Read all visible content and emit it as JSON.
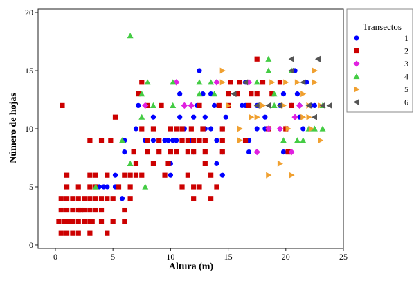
{
  "chart_data": {
    "type": "scatter",
    "xlabel": "Altura (m)",
    "ylabel": "Número de hojas",
    "xlim": [
      -1.5,
      25
    ],
    "ylim": [
      -0.3,
      20.3
    ],
    "xticks": [
      0,
      5,
      10,
      15,
      20,
      25
    ],
    "yticks": [
      0,
      5,
      10,
      15,
      20
    ],
    "legend": {
      "title": "Transectos",
      "placement": "right"
    },
    "series": [
      {
        "name": "1",
        "color": "#0000ff",
        "marker": "circle",
        "points": [
          [
            3.5,
            3
          ],
          [
            3.8,
            5
          ],
          [
            4.2,
            5
          ],
          [
            4.5,
            5
          ],
          [
            5.2,
            6
          ],
          [
            5.2,
            5
          ],
          [
            5.8,
            4
          ],
          [
            6,
            8
          ],
          [
            6,
            9
          ],
          [
            7,
            10
          ],
          [
            7.2,
            12
          ],
          [
            7.8,
            9
          ],
          [
            8.5,
            11
          ],
          [
            8.5,
            9
          ],
          [
            9.5,
            9
          ],
          [
            9.8,
            9
          ],
          [
            10.2,
            9
          ],
          [
            10.5,
            9
          ],
          [
            10,
            7
          ],
          [
            10,
            6
          ],
          [
            10.8,
            13
          ],
          [
            10.8,
            11
          ],
          [
            11,
            9
          ],
          [
            11.2,
            10
          ],
          [
            11.8,
            9
          ],
          [
            12,
            11
          ],
          [
            12,
            8
          ],
          [
            12.3,
            12
          ],
          [
            12.5,
            15
          ],
          [
            12.8,
            13
          ],
          [
            13,
            11
          ],
          [
            13,
            10
          ],
          [
            13,
            9
          ],
          [
            13.5,
            13
          ],
          [
            13.5,
            10
          ],
          [
            13.8,
            12
          ],
          [
            14,
            9
          ],
          [
            14,
            7
          ],
          [
            14.5,
            8
          ],
          [
            14.5,
            6
          ],
          [
            14.5,
            10
          ],
          [
            14.8,
            11
          ],
          [
            16.2,
            12
          ],
          [
            16.5,
            14
          ],
          [
            16.5,
            12
          ],
          [
            16.8,
            9
          ],
          [
            16.8,
            8
          ],
          [
            17.5,
            12
          ],
          [
            17.5,
            10
          ],
          [
            18.2,
            11
          ],
          [
            18.2,
            10
          ],
          [
            19.5,
            12
          ],
          [
            19.5,
            10
          ],
          [
            19.8,
            13
          ],
          [
            19.8,
            8
          ],
          [
            20.5,
            12
          ],
          [
            20.8,
            15
          ],
          [
            21,
            13
          ],
          [
            21.2,
            12
          ],
          [
            21.2,
            11
          ],
          [
            21.5,
            10
          ],
          [
            21.8,
            14
          ],
          [
            22.2,
            12
          ],
          [
            22.5,
            12
          ]
        ]
      },
      {
        "name": "2",
        "color": "#cc0000",
        "marker": "square",
        "points": [
          [
            0.3,
            2
          ],
          [
            0.5,
            1
          ],
          [
            0.5,
            3
          ],
          [
            0.5,
            4
          ],
          [
            0.6,
            12
          ],
          [
            0.8,
            2
          ],
          [
            1,
            1
          ],
          [
            1,
            3
          ],
          [
            1,
            4
          ],
          [
            1,
            5
          ],
          [
            1,
            6
          ],
          [
            1.2,
            2
          ],
          [
            1.5,
            1
          ],
          [
            1.5,
            2
          ],
          [
            1.5,
            3
          ],
          [
            1.5,
            4
          ],
          [
            2,
            1
          ],
          [
            2,
            2
          ],
          [
            2,
            3
          ],
          [
            2,
            4
          ],
          [
            2,
            5
          ],
          [
            2.2,
            3
          ],
          [
            2.5,
            2
          ],
          [
            2.5,
            3
          ],
          [
            2.5,
            4
          ],
          [
            3,
            1
          ],
          [
            3,
            2
          ],
          [
            3,
            3
          ],
          [
            3,
            4
          ],
          [
            3,
            5
          ],
          [
            3,
            6
          ],
          [
            3,
            9
          ],
          [
            3.2,
            2
          ],
          [
            3.5,
            3
          ],
          [
            3.5,
            4
          ],
          [
            3.5,
            5
          ],
          [
            3.5,
            6
          ],
          [
            4,
            2
          ],
          [
            4,
            3
          ],
          [
            4,
            4
          ],
          [
            4,
            9
          ],
          [
            4.5,
            1
          ],
          [
            4.5,
            4
          ],
          [
            4.5,
            6
          ],
          [
            4.8,
            9
          ],
          [
            5,
            4
          ],
          [
            5,
            2
          ],
          [
            5.2,
            11
          ],
          [
            5.5,
            5
          ],
          [
            6,
            2
          ],
          [
            6,
            3
          ],
          [
            6,
            6
          ],
          [
            6.5,
            4
          ],
          [
            6.5,
            5
          ],
          [
            6.5,
            6
          ],
          [
            6.8,
            8
          ],
          [
            7,
            6
          ],
          [
            7,
            7
          ],
          [
            7.2,
            13
          ],
          [
            7.5,
            6
          ],
          [
            7.5,
            14
          ],
          [
            7.5,
            10
          ],
          [
            8,
            12
          ],
          [
            8,
            9
          ],
          [
            8,
            8
          ],
          [
            8.5,
            10
          ],
          [
            8.5,
            7
          ],
          [
            9,
            9
          ],
          [
            9,
            8
          ],
          [
            9.2,
            12
          ],
          [
            9.5,
            6
          ],
          [
            9.8,
            7
          ],
          [
            10,
            8
          ],
          [
            10,
            10
          ],
          [
            10.5,
            8
          ],
          [
            10.5,
            10
          ],
          [
            11,
            5
          ],
          [
            11,
            9
          ],
          [
            11,
            10
          ],
          [
            11.5,
            6
          ],
          [
            11.5,
            9
          ],
          [
            11.5,
            8
          ],
          [
            11.8,
            10
          ],
          [
            12,
            9
          ],
          [
            12,
            8
          ],
          [
            12,
            4
          ],
          [
            12,
            5
          ],
          [
            12.5,
            9
          ],
          [
            12.5,
            12
          ],
          [
            12.5,
            5
          ],
          [
            12.8,
            10
          ],
          [
            13,
            7
          ],
          [
            13,
            8
          ],
          [
            13,
            9
          ],
          [
            13.5,
            6
          ],
          [
            13.5,
            4
          ],
          [
            14,
            5
          ],
          [
            14.2,
            12
          ],
          [
            14.5,
            9
          ],
          [
            14.5,
            8
          ],
          [
            14.5,
            10
          ],
          [
            15,
            13
          ],
          [
            15,
            12
          ],
          [
            15.2,
            14
          ],
          [
            15.8,
            13
          ],
          [
            16,
            14
          ],
          [
            16.5,
            9
          ],
          [
            16.8,
            12
          ],
          [
            17,
            13
          ],
          [
            17.5,
            16
          ],
          [
            17.5,
            13
          ],
          [
            18,
            14
          ],
          [
            18.5,
            10
          ],
          [
            18.8,
            13
          ],
          [
            19.5,
            14
          ],
          [
            20,
            10
          ],
          [
            20.2,
            8
          ],
          [
            20.5,
            12
          ]
        ]
      },
      {
        "name": "3",
        "color": "#e020e0",
        "marker": "diamond",
        "points": [
          [
            7.8,
            12
          ],
          [
            10.5,
            14
          ],
          [
            11.2,
            12
          ],
          [
            11.8,
            12
          ],
          [
            14,
            14
          ],
          [
            16.8,
            14
          ],
          [
            17.5,
            8
          ],
          [
            18.5,
            10
          ],
          [
            19.5,
            10
          ],
          [
            20.5,
            8
          ],
          [
            20.8,
            11
          ],
          [
            21.2,
            12
          ]
        ]
      },
      {
        "name": "4",
        "color": "#44cc44",
        "marker": "triangle-up",
        "points": [
          [
            3.5,
            5
          ],
          [
            5.8,
            9
          ],
          [
            6.5,
            18
          ],
          [
            6.5,
            7
          ],
          [
            7.5,
            11
          ],
          [
            7.5,
            13
          ],
          [
            7.8,
            5
          ],
          [
            8,
            14
          ],
          [
            8.5,
            12
          ],
          [
            10.2,
            14
          ],
          [
            10.2,
            12
          ],
          [
            12.5,
            14
          ],
          [
            12.5,
            13
          ],
          [
            13.5,
            14
          ],
          [
            13.8,
            13
          ],
          [
            17.5,
            14
          ],
          [
            18.5,
            16
          ],
          [
            18.5,
            15
          ],
          [
            19,
            13
          ],
          [
            19,
            12
          ],
          [
            19.8,
            9
          ],
          [
            20.5,
            15
          ],
          [
            21,
            9
          ],
          [
            21.5,
            9
          ],
          [
            22,
            10
          ],
          [
            22.5,
            10
          ],
          [
            23.2,
            10
          ],
          [
            23.2,
            12
          ]
        ]
      },
      {
        "name": "5",
        "color": "#f0a030",
        "marker": "triangle-right",
        "points": [
          [
            14.5,
            15
          ],
          [
            14.5,
            14
          ],
          [
            15,
            12
          ],
          [
            16,
            10
          ],
          [
            16,
            9
          ],
          [
            17,
            11
          ],
          [
            17.5,
            11
          ],
          [
            18,
            12
          ],
          [
            18.5,
            6
          ],
          [
            18.8,
            14
          ],
          [
            19.5,
            7
          ],
          [
            19.8,
            12
          ],
          [
            20,
            14
          ],
          [
            20.2,
            10
          ],
          [
            20.5,
            6
          ],
          [
            21,
            14
          ],
          [
            21.5,
            11
          ],
          [
            21.5,
            13
          ],
          [
            22,
            12
          ],
          [
            22,
            11
          ],
          [
            22.2,
            10
          ],
          [
            22.5,
            14
          ],
          [
            22.5,
            15
          ],
          [
            23,
            9
          ],
          [
            23,
            12
          ]
        ]
      },
      {
        "name": "6",
        "color": "#555555",
        "marker": "triangle-left",
        "points": [
          [
            15.5,
            13
          ],
          [
            16.5,
            14
          ],
          [
            17.5,
            12
          ],
          [
            18.5,
            12
          ],
          [
            19.5,
            12
          ],
          [
            20.5,
            16
          ],
          [
            20.5,
            15
          ],
          [
            21.5,
            14
          ],
          [
            22,
            12
          ],
          [
            22.5,
            11
          ],
          [
            22.8,
            16
          ],
          [
            23.2,
            12
          ],
          [
            23.8,
            12
          ]
        ]
      }
    ]
  }
}
